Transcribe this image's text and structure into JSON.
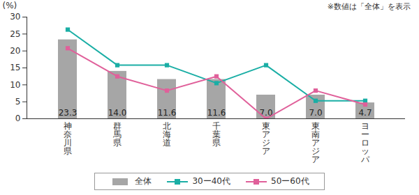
{
  "chart_data": {
    "type": "bar",
    "ylabel": "(%)",
    "annotation": "※数値は「全体」を表示",
    "categories": [
      "神奈川県",
      "群馬県",
      "北海道",
      "千葉県",
      "東アジア",
      "東南アジア",
      "ヨーロッパ"
    ],
    "series": [
      {
        "name": "全体",
        "type": "bar",
        "color": "#a6a6a6",
        "values": [
          23.3,
          14.0,
          11.6,
          11.6,
          7.0,
          7.0,
          4.7
        ],
        "value_labels": [
          "23.3",
          "14.0",
          "11.6",
          "11.6",
          "7.0",
          "7.0",
          "4.7"
        ],
        "data_labels": true
      },
      {
        "name": "30ー40代",
        "type": "line",
        "color": "#1aaea5",
        "marker": "square",
        "values": [
          26.3,
          15.8,
          15.8,
          10.5,
          15.8,
          5.3,
          5.3
        ]
      },
      {
        "name": "50ー60代",
        "type": "line",
        "color": "#e0609a",
        "marker": "square",
        "values": [
          20.8,
          12.5,
          8.3,
          12.5,
          0,
          8.3,
          4.2
        ]
      }
    ],
    "ylim": [
      0,
      30
    ],
    "yticks": [
      0,
      5,
      10,
      15,
      20,
      25,
      30
    ],
    "legend": "bottom"
  }
}
